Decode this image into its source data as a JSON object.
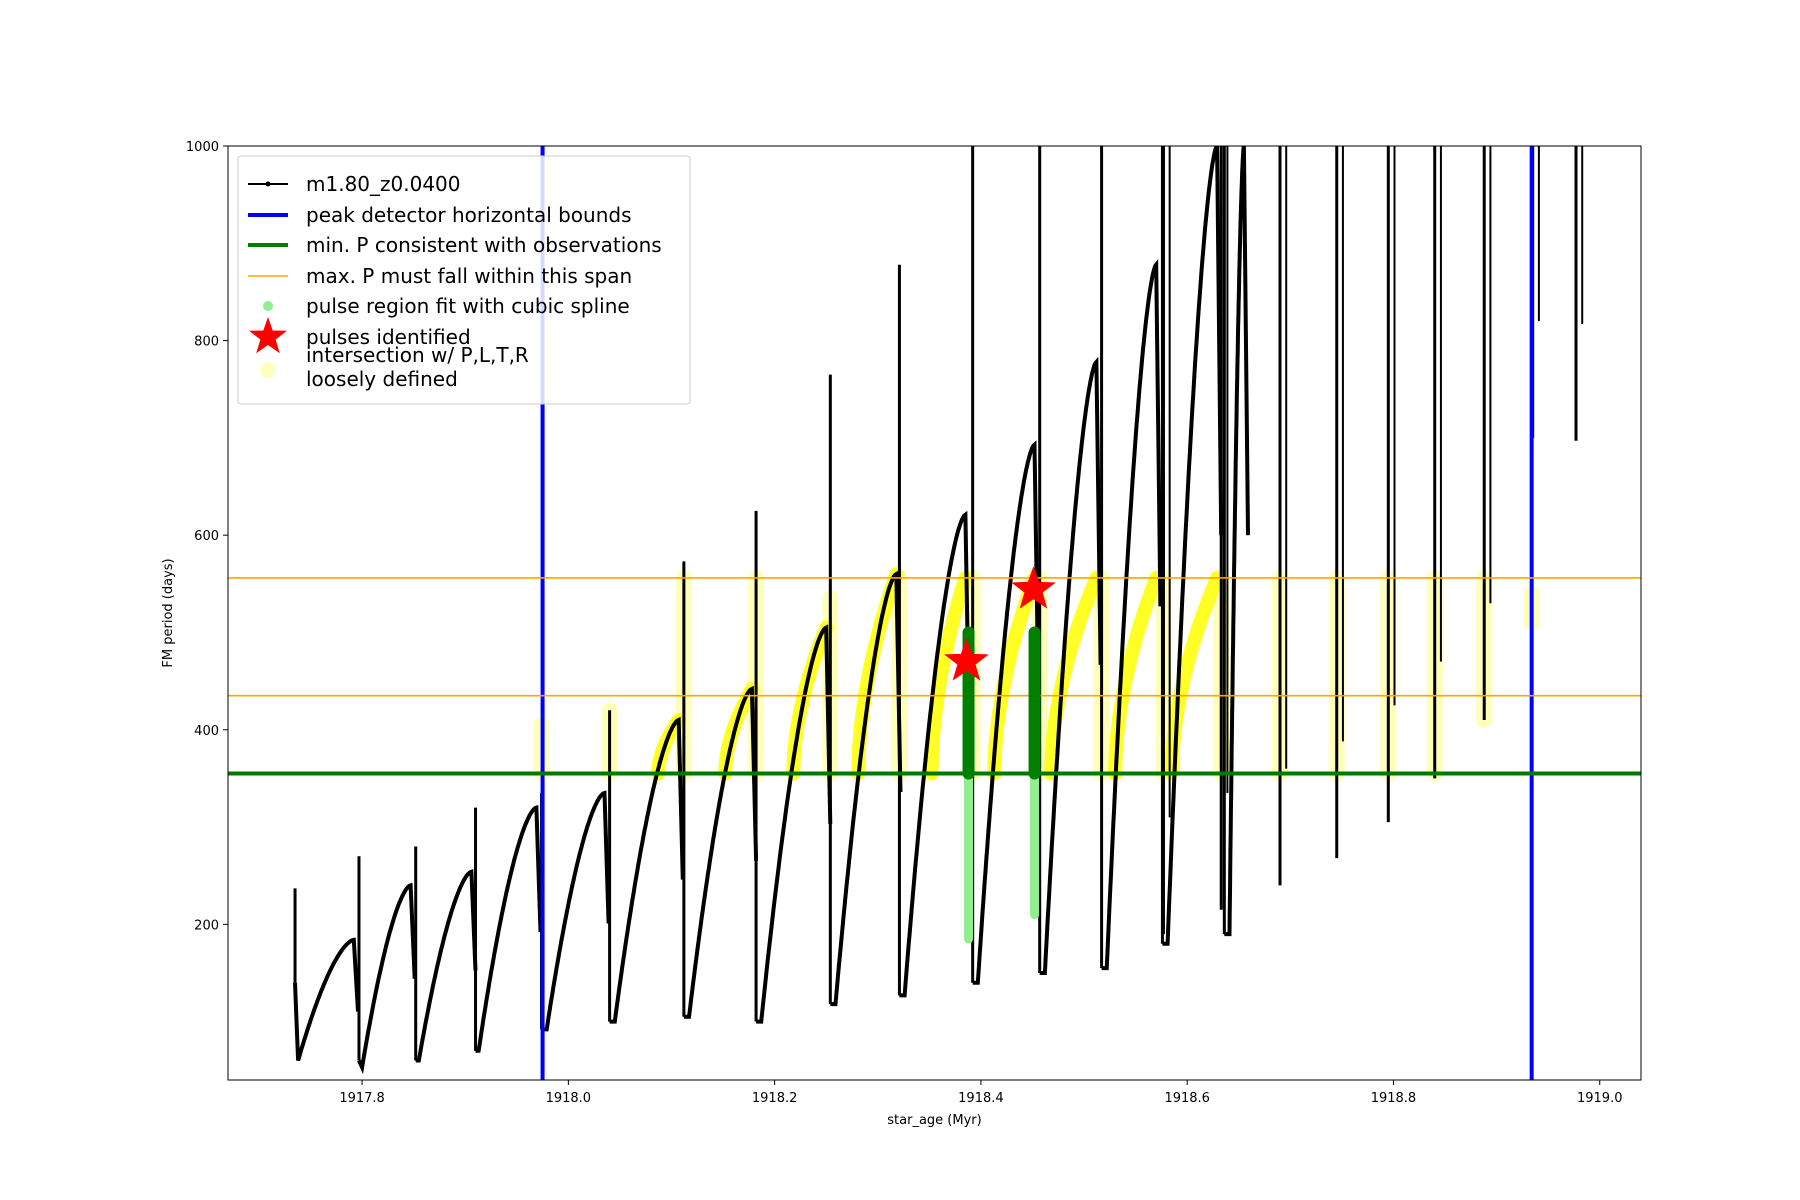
{
  "chart_data": {
    "type": "line",
    "xlabel": "star_age (Myr)",
    "ylabel": "FM period (days)",
    "xlim": [
      1917.67,
      1919.04
    ],
    "ylim": [
      40,
      1000
    ],
    "x_ticks": [
      1917.8,
      1918.0,
      1918.2,
      1918.4,
      1918.6,
      1918.8,
      1919.0
    ],
    "x_tick_labels": [
      "1917.8",
      "1918.0",
      "1918.2",
      "1918.4",
      "1918.6",
      "1918.8",
      "1919.0"
    ],
    "y_ticks": [
      200,
      400,
      600,
      800,
      1000
    ],
    "y_tick_labels": [
      "200",
      "400",
      "600",
      "800",
      "1000"
    ],
    "grid": false,
    "legend_position": "upper-left",
    "legend": [
      {
        "label": "m1.80_z0.0400",
        "kind": "line-dot",
        "color": "#000000"
      },
      {
        "label": "peak detector horizontal bounds",
        "kind": "thick-line",
        "color": "#0000ff"
      },
      {
        "label": "min. P consistent with observations",
        "kind": "thick-line",
        "color": "#008000"
      },
      {
        "label": "max. P must fall within this span",
        "kind": "thin-line",
        "color": "#ffa500"
      },
      {
        "label": "pulse region fit with cubic spline",
        "kind": "dot",
        "color": "#90ee90"
      },
      {
        "label": "pulses identified",
        "kind": "star",
        "color": "#ff0000"
      },
      {
        "label": "intersection w/ P,L,T,R",
        "label2": "loosely defined",
        "kind": "big-dot",
        "color": "#ffffc0"
      }
    ],
    "series_name": "m1.80_z0.0400",
    "pulses": [
      {
        "start": 1917.735,
        "peak": 1917.792,
        "max": 184,
        "min": 60,
        "spike_min": 140,
        "spike_max": 237,
        "t_min_offset": 0.003
      },
      {
        "start": 1917.797,
        "peak": 1917.847,
        "max": 240,
        "min": 53,
        "spike_min": 60,
        "spike_max": 270,
        "t_min_offset": 0.003
      },
      {
        "start": 1917.852,
        "peak": 1917.906,
        "max": 254,
        "min": 60,
        "spike_min": 60,
        "spike_max": 280,
        "t_min_offset": 0.003
      },
      {
        "start": 1917.91,
        "peak": 1917.969,
        "max": 320,
        "min": 70,
        "spike_min": 70,
        "spike_max": 320,
        "t_min_offset": 0.003
      },
      {
        "start": 1917.974,
        "peak": 1918.035,
        "max": 335,
        "min": 92,
        "spike_min": 92,
        "spike_max": 335,
        "t_min_offset": 0.005
      },
      {
        "start": 1918.04,
        "peak": 1918.107,
        "max": 410,
        "min": 100,
        "spike_min": 100,
        "spike_max": 420,
        "t_min_offset": 0.005
      },
      {
        "start": 1918.112,
        "peak": 1918.178,
        "max": 442,
        "min": 105,
        "spike_min": 105,
        "spike_max": 573,
        "t_min_offset": 0.005
      },
      {
        "start": 1918.182,
        "peak": 1918.25,
        "max": 505,
        "min": 100,
        "spike_min": 100,
        "spike_max": 625,
        "t_min_offset": 0.005
      },
      {
        "start": 1918.254,
        "peak": 1918.318,
        "max": 560,
        "min": 118,
        "spike_min": 118,
        "spike_max": 765,
        "t_min_offset": 0.005
      },
      {
        "start": 1918.321,
        "peak": 1918.385,
        "max": 621,
        "min": 127,
        "spike_min": 127,
        "spike_max": 878,
        "t_min_offset": 0.005
      },
      {
        "start": 1918.392,
        "peak": 1918.452,
        "max": 693,
        "min": 140,
        "spike_min": 140,
        "spike_max": 1000,
        "t_min_offset": 0.005
      },
      {
        "start": 1918.457,
        "peak": 1918.512,
        "max": 778,
        "min": 150,
        "spike_min": 150,
        "spike_max": 1000,
        "t_min_offset": 0.005
      },
      {
        "start": 1918.517,
        "peak": 1918.57,
        "max": 878,
        "min": 155,
        "spike_min": 155,
        "spike_max": 1000,
        "t_min_offset": 0.005
      },
      {
        "start": 1918.576,
        "peak": 1918.629,
        "max": 1000,
        "min": 180,
        "spike_min": 180,
        "spike_max": 1000,
        "t_min_offset": 0.005
      },
      {
        "start": 1918.636,
        "peak": 1918.655,
        "max": 1000,
        "min": 190,
        "spike_min": 190,
        "spike_max": 1000,
        "t_min_offset": 0.005
      }
    ],
    "late_spikes": [
      {
        "x": 1918.577,
        "min": 190,
        "max": 1000
      },
      {
        "x": 1918.633,
        "min": 215,
        "max": 1000
      },
      {
        "x": 1918.69,
        "min": 240,
        "max": 1000
      },
      {
        "x": 1918.745,
        "min": 268,
        "max": 1000
      },
      {
        "x": 1918.795,
        "min": 305,
        "max": 1000
      },
      {
        "x": 1918.84,
        "min": 350,
        "max": 1000
      },
      {
        "x": 1918.888,
        "min": 410,
        "max": 1000
      },
      {
        "x": 1918.935,
        "min": 700,
        "max": 1000
      },
      {
        "x": 1918.977,
        "min": 697,
        "max": 1000
      }
    ],
    "blue_bounds": [
      1917.975,
      1918.934
    ],
    "min_period": 355,
    "max_period_span": [
      435,
      556
    ],
    "spline_regions": [
      {
        "x": 1918.388,
        "y_low": 185,
        "y_high": 500,
        "dark_low": 355,
        "dark_high": 500
      },
      {
        "x": 1918.452,
        "y_low": 210,
        "y_high": 500,
        "dark_low": 355,
        "dark_high": 500
      }
    ],
    "pulses_identified": [
      {
        "x": 1918.386,
        "y": 470
      },
      {
        "x": 1918.451,
        "y": 544
      }
    ],
    "yellow_arcs": [
      {
        "x0": 1918.087,
        "x1": 1918.107,
        "ymax": 410
      },
      {
        "x0": 1918.152,
        "x1": 1918.178,
        "ymax": 442
      },
      {
        "x0": 1918.218,
        "x1": 1918.25,
        "ymax": 505
      },
      {
        "x0": 1918.281,
        "x1": 1918.318,
        "ymax": 560
      },
      {
        "x0": 1918.352,
        "x1": 1918.385,
        "ymax": 556
      },
      {
        "x0": 1918.413,
        "x1": 1918.452,
        "ymax": 556
      },
      {
        "x0": 1918.468,
        "x1": 1918.512,
        "ymax": 556
      },
      {
        "x0": 1918.53,
        "x1": 1918.57,
        "ymax": 556
      },
      {
        "x0": 1918.585,
        "x1": 1918.629,
        "ymax": 556
      }
    ],
    "yellow_bands": [
      {
        "x": 1917.974,
        "y0": 355,
        "y1": 405
      },
      {
        "x": 1918.04,
        "y0": 355,
        "y1": 420
      },
      {
        "x": 1918.112,
        "y0": 355,
        "y1": 556
      },
      {
        "x": 1918.182,
        "y0": 355,
        "y1": 556
      },
      {
        "x": 1918.254,
        "y0": 355,
        "y1": 535
      },
      {
        "x": 1918.321,
        "y0": 355,
        "y1": 556
      },
      {
        "x": 1918.392,
        "y0": 355,
        "y1": 556
      },
      {
        "x": 1918.457,
        "y0": 355,
        "y1": 556
      },
      {
        "x": 1918.517,
        "y0": 355,
        "y1": 556
      },
      {
        "x": 1918.577,
        "y0": 355,
        "y1": 556
      },
      {
        "x": 1918.633,
        "y0": 355,
        "y1": 556
      },
      {
        "x": 1918.69,
        "y0": 355,
        "y1": 556
      },
      {
        "x": 1918.745,
        "y0": 355,
        "y1": 556
      },
      {
        "x": 1918.795,
        "y0": 355,
        "y1": 556
      },
      {
        "x": 1918.84,
        "y0": 355,
        "y1": 556
      },
      {
        "x": 1918.888,
        "y0": 410,
        "y1": 556
      },
      {
        "x": 1918.934,
        "y0": 510,
        "y1": 540
      }
    ]
  }
}
